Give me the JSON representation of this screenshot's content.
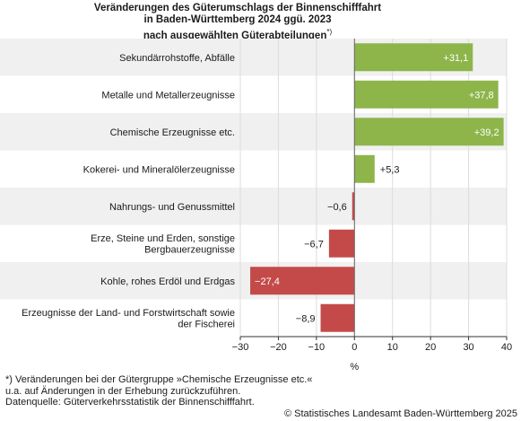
{
  "title_lines": [
    "Veränderungen des Güterumschlags der Binnenschifffahrt",
    "in Baden-Württemberg 2024 ggü. 2023",
    "nach ausgewählten Güterabteilungen"
  ],
  "title_marker": "*)",
  "chart_data": {
    "type": "bar",
    "orientation": "horizontal",
    "categories": [
      [
        "Sekundärrohstoffe, Abfälle"
      ],
      [
        "Metalle und Metallerzeugnisse"
      ],
      [
        "Chemische Erzeugnisse etc."
      ],
      [
        "Kokerei- und Mineralölerzeugnisse"
      ],
      [
        "Nahrungs- und Genussmittel"
      ],
      [
        "Erze, Steine und Erden, sonstige",
        "Bergbauerzeugnisse"
      ],
      [
        "Kohle, rohes Erdöl und Erdgas"
      ],
      [
        "Erzeugnisse der Land- und Forstwirtschaft sowie",
        "der Fischerei"
      ]
    ],
    "values": [
      31.1,
      37.8,
      39.2,
      5.3,
      -0.6,
      -6.7,
      -27.4,
      -8.9
    ],
    "value_labels": [
      "+31,1",
      "+37,8",
      "+39,2",
      "+5,3",
      "−0,6",
      "−6,7",
      "−27,4",
      "−8,9"
    ],
    "xlim": [
      -30,
      40
    ],
    "xticks": [
      -30,
      -20,
      -10,
      0,
      10,
      20,
      30,
      40
    ],
    "xtick_labels": [
      "−30",
      "−20",
      "−10",
      "0",
      "10",
      "20",
      "30",
      "40"
    ],
    "xlabel": "%",
    "grid": true,
    "colors": {
      "positive": "#8db54a",
      "negative": "#c44a4a",
      "grid": "#dcdcdc",
      "band": "#f0f0f0"
    }
  },
  "footnote_lines": [
    "*) Veränderungen bei der Gütergruppe »Chemische Erzeugnisse etc.«",
    "u.a. auf Änderungen in der Erhebung zurückzuführen.",
    "Datenquelle: Güterverkehrsstatistik der Binnenschifffahrt."
  ],
  "copyright": "© Statistisches Landesamt Baden-Württemberg 2025"
}
